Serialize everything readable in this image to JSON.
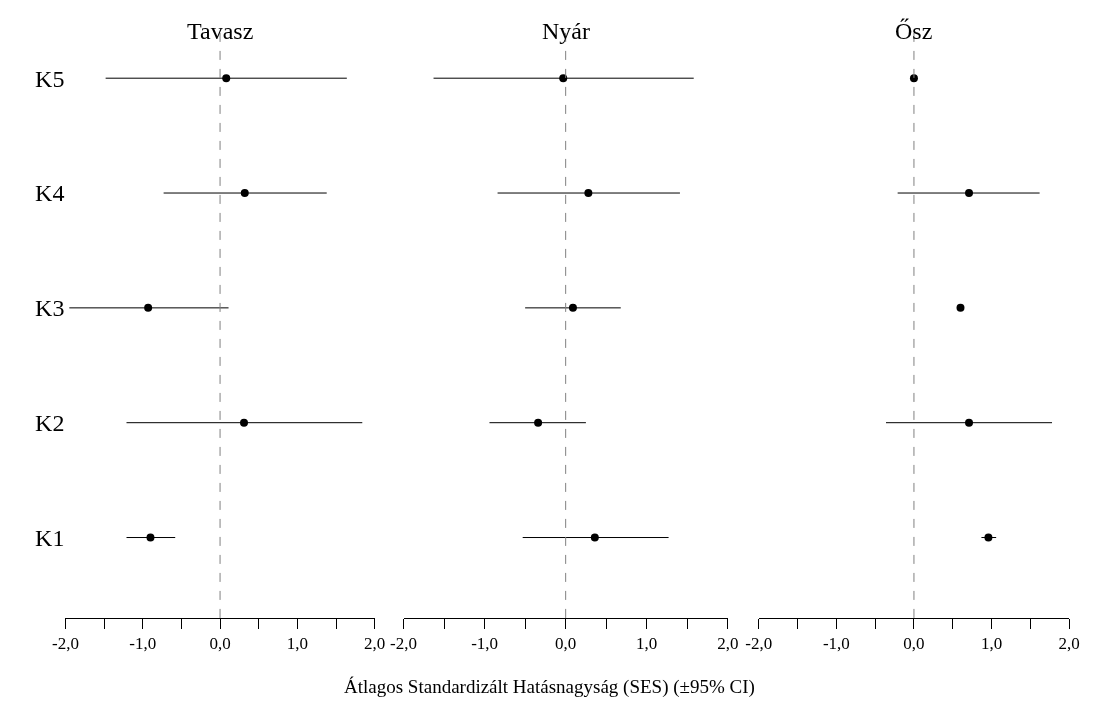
{
  "chart_data": [
    {
      "type": "scatter",
      "orientation": "horizontal",
      "title": "Tavasz",
      "categories": [
        "K5",
        "K4",
        "K3",
        "K2",
        "K1"
      ],
      "values": [
        0.08,
        0.32,
        -0.93,
        0.31,
        -0.9
      ],
      "errors": [
        [
          -1.48,
          1.64
        ],
        [
          -0.73,
          1.38
        ],
        [
          -1.95,
          0.11
        ],
        [
          -1.21,
          1.84
        ],
        [
          -1.21,
          -0.58
        ]
      ],
      "color": "#000000",
      "marker": "circle",
      "xlim": [
        -2,
        2
      ],
      "xticks": [
        {
          "value": -2,
          "label": "-2,0"
        },
        {
          "value": -1.5,
          "label": null
        },
        {
          "value": -1,
          "label": "-1,0"
        },
        {
          "value": -0.5,
          "label": null
        },
        {
          "value": 0,
          "label": "0,0"
        },
        {
          "value": 0.5,
          "label": null
        },
        {
          "value": 1,
          "label": "1,0"
        },
        {
          "value": 1.5,
          "label": null
        },
        {
          "value": 2,
          "label": "2,0"
        }
      ],
      "ref_lines": [
        {
          "axis": "x",
          "value": 0,
          "line_style": "dashed",
          "color": "#808080"
        }
      ]
    },
    {
      "type": "scatter",
      "orientation": "horizontal",
      "title": "Nyár",
      "xlabel": "Átlagos Standardizált Hatásnagyság (SES) (±95% CI)",
      "categories": [
        null,
        null,
        null,
        null,
        null
      ],
      "values": [
        -0.03,
        0.28,
        0.09,
        -0.34,
        0.36
      ],
      "errors": [
        [
          -1.63,
          1.58
        ],
        [
          -0.84,
          1.41
        ],
        [
          -0.5,
          0.68
        ],
        [
          -0.94,
          0.25
        ],
        [
          -0.53,
          1.27
        ]
      ],
      "color": "#000000",
      "marker": "circle",
      "xlim": [
        -2,
        2
      ],
      "xticks": [
        {
          "value": -2,
          "label": "-2,0"
        },
        {
          "value": -1.5,
          "label": null
        },
        {
          "value": -1,
          "label": "-1,0"
        },
        {
          "value": -0.5,
          "label": null
        },
        {
          "value": 0,
          "label": "0,0"
        },
        {
          "value": 0.5,
          "label": null
        },
        {
          "value": 1,
          "label": "1,0"
        },
        {
          "value": 1.5,
          "label": null
        },
        {
          "value": 2,
          "label": "2,0"
        }
      ],
      "ref_lines": [
        {
          "axis": "x",
          "value": 0,
          "line_style": "dashed",
          "color": "#808080"
        }
      ],
      "tick_labels": "x"
    },
    {
      "type": "scatter",
      "orientation": "horizontal",
      "title": "Ősz",
      "categories": [
        null,
        null,
        null,
        null,
        null
      ],
      "values": [
        0.0,
        0.71,
        0.6,
        0.71,
        0.96
      ],
      "errors": [
        null,
        [
          -0.21,
          1.62
        ],
        null,
        [
          -0.36,
          1.78
        ],
        [
          0.87,
          1.06
        ]
      ],
      "color": "#000000",
      "marker": "circle",
      "xlim": [
        -2,
        2
      ],
      "xticks": [
        {
          "value": -2,
          "label": "-2,0"
        },
        {
          "value": -1.5,
          "label": null
        },
        {
          "value": -1,
          "label": "-1,0"
        },
        {
          "value": -0.5,
          "label": null
        },
        {
          "value": 0,
          "label": "0,0"
        },
        {
          "value": 0.5,
          "label": null
        },
        {
          "value": 1,
          "label": "1,0"
        },
        {
          "value": 1.5,
          "label": null
        },
        {
          "value": 2,
          "label": "2,0"
        }
      ],
      "ref_lines": [
        {
          "axis": "x",
          "value": 0,
          "line_style": "dashed",
          "color": "#808080"
        }
      ],
      "tick_labels": "x"
    }
  ]
}
